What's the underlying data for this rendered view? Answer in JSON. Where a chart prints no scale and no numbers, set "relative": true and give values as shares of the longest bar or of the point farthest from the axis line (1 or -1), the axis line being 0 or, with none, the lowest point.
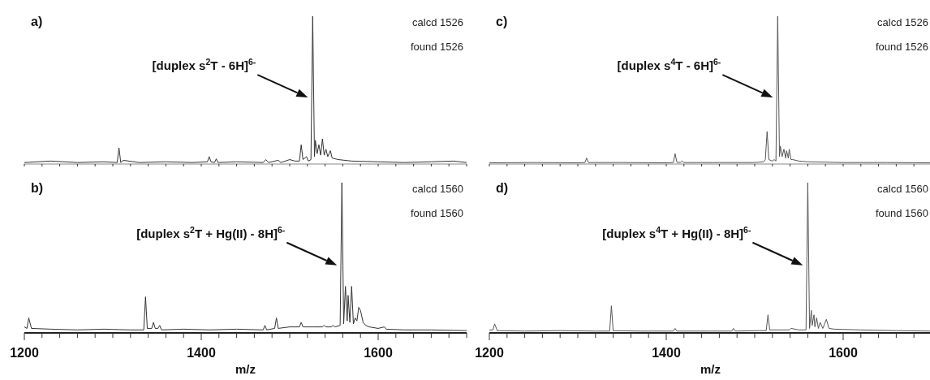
{
  "chart_data": [
    {
      "type": "line",
      "relative": true,
      "xlim": [
        1200,
        1700
      ],
      "tick_labels": false,
      "xticks": [
        {
          "value": 1200,
          "label": null
        },
        {
          "value": 1220,
          "label": null
        },
        {
          "value": 1240,
          "label": null
        },
        {
          "value": 1260,
          "label": null
        },
        {
          "value": 1280,
          "label": null
        },
        {
          "value": 1300,
          "label": null
        },
        {
          "value": 1320,
          "label": null
        },
        {
          "value": 1340,
          "label": null
        },
        {
          "value": 1360,
          "label": null
        },
        {
          "value": 1380,
          "label": null
        },
        {
          "value": 1400,
          "label": null
        },
        {
          "value": 1420,
          "label": null
        },
        {
          "value": 1440,
          "label": null
        },
        {
          "value": 1460,
          "label": null
        },
        {
          "value": 1480,
          "label": null
        },
        {
          "value": 1500,
          "label": null
        },
        {
          "value": 1520,
          "label": null
        },
        {
          "value": 1540,
          "label": null
        },
        {
          "value": 1560,
          "label": null
        },
        {
          "value": 1580,
          "label": null
        },
        {
          "value": 1600,
          "label": null
        },
        {
          "value": 1620,
          "label": null
        },
        {
          "value": 1640,
          "label": null
        },
        {
          "value": 1660,
          "label": null
        },
        {
          "value": 1680,
          "label": null
        },
        {
          "value": 1700,
          "label": null
        }
      ],
      "annotations": [
        "a)",
        "calcd 1526",
        "found 1526",
        "[duplex s$^{2}$T - 6H]$^{6-}$"
      ],
      "series": [
        {
          "color": "#333333",
          "x": [
            1200,
            1230,
            1260,
            1290,
            1305,
            1307,
            1309,
            1312,
            1330,
            1360,
            1390,
            1407,
            1409,
            1411,
            1415,
            1417,
            1419,
            1440,
            1470,
            1473,
            1476,
            1487,
            1490,
            1500,
            1506,
            1511,
            1513,
            1515,
            1519,
            1521,
            1524,
            1526,
            1528,
            1529,
            1531,
            1533,
            1535,
            1537,
            1539,
            1541,
            1543,
            1546,
            1548,
            1555,
            1570,
            1600,
            1630,
            1660,
            1685,
            1700
          ],
          "values": [
            0.01,
            0.02,
            0.01,
            0.015,
            0.01,
            0.11,
            0.01,
            0.025,
            0.01,
            0.015,
            0.01,
            0.015,
            0.05,
            0.015,
            0.01,
            0.035,
            0.01,
            0.015,
            0.01,
            0.03,
            0.01,
            0.025,
            0.01,
            0.03,
            0.02,
            0.02,
            0.13,
            0.03,
            0.05,
            0.02,
            0.03,
            1.0,
            0.05,
            0.16,
            0.07,
            0.13,
            0.06,
            0.17,
            0.06,
            0.1,
            0.05,
            0.09,
            0.04,
            0.03,
            0.02,
            0.015,
            0.01,
            0.015,
            0.02,
            0.01
          ]
        }
      ]
    },
    {
      "type": "line",
      "relative": true,
      "xlim": [
        1200,
        1700
      ],
      "tick_labels": false,
      "xticks": [
        {
          "value": 1200,
          "label": null
        },
        {
          "value": 1220,
          "label": null
        },
        {
          "value": 1240,
          "label": null
        },
        {
          "value": 1260,
          "label": null
        },
        {
          "value": 1280,
          "label": null
        },
        {
          "value": 1300,
          "label": null
        },
        {
          "value": 1320,
          "label": null
        },
        {
          "value": 1340,
          "label": null
        },
        {
          "value": 1360,
          "label": null
        },
        {
          "value": 1380,
          "label": null
        },
        {
          "value": 1400,
          "label": null
        },
        {
          "value": 1420,
          "label": null
        },
        {
          "value": 1440,
          "label": null
        },
        {
          "value": 1460,
          "label": null
        },
        {
          "value": 1480,
          "label": null
        },
        {
          "value": 1500,
          "label": null
        },
        {
          "value": 1520,
          "label": null
        },
        {
          "value": 1540,
          "label": null
        },
        {
          "value": 1560,
          "label": null
        },
        {
          "value": 1580,
          "label": null
        },
        {
          "value": 1600,
          "label": null
        },
        {
          "value": 1620,
          "label": null
        },
        {
          "value": 1640,
          "label": null
        },
        {
          "value": 1660,
          "label": null
        },
        {
          "value": 1680,
          "label": null
        },
        {
          "value": 1700,
          "label": null
        }
      ],
      "annotations": [
        "c)",
        "calcd 1526",
        "found 1526",
        "[duplex s$^{4}$T - 6H]$^{6-}$"
      ],
      "series": [
        {
          "color": "#555555",
          "x": [
            1200,
            1250,
            1300,
            1308,
            1310,
            1312,
            1350,
            1400,
            1408,
            1410,
            1412,
            1416,
            1418,
            1420,
            1460,
            1500,
            1510,
            1512,
            1514,
            1516,
            1520,
            1522,
            1524,
            1526,
            1528,
            1529,
            1531,
            1533,
            1535,
            1536,
            1538,
            1539,
            1541,
            1543,
            1550,
            1560,
            1600,
            1650,
            1700
          ],
          "values": [
            0.008,
            0.01,
            0.008,
            0.01,
            0.04,
            0.01,
            0.01,
            0.008,
            0.01,
            0.07,
            0.012,
            0.01,
            0.02,
            0.01,
            0.01,
            0.01,
            0.015,
            0.03,
            0.22,
            0.03,
            0.02,
            0.03,
            0.02,
            1.0,
            0.05,
            0.12,
            0.05,
            0.1,
            0.04,
            0.09,
            0.04,
            0.1,
            0.03,
            0.03,
            0.02,
            0.015,
            0.01,
            0.01,
            0.008
          ]
        }
      ]
    },
    {
      "type": "line",
      "relative": true,
      "xlim": [
        1200,
        1700
      ],
      "tick_labels": "x",
      "xlabel": "m/z",
      "xticks": [
        1200,
        {
          "value": 1220,
          "label": null
        },
        {
          "value": 1240,
          "label": null
        },
        {
          "value": 1260,
          "label": null
        },
        {
          "value": 1280,
          "label": null
        },
        {
          "value": 1300,
          "label": null
        },
        {
          "value": 1320,
          "label": null
        },
        {
          "value": 1340,
          "label": null
        },
        {
          "value": 1360,
          "label": null
        },
        {
          "value": 1380,
          "label": null
        },
        1400,
        {
          "value": 1420,
          "label": null
        },
        {
          "value": 1440,
          "label": null
        },
        {
          "value": 1460,
          "label": null
        },
        {
          "value": 1480,
          "label": null
        },
        {
          "value": 1500,
          "label": null
        },
        {
          "value": 1520,
          "label": null
        },
        {
          "value": 1540,
          "label": null
        },
        {
          "value": 1560,
          "label": null
        },
        {
          "value": 1580,
          "label": null
        },
        1600,
        {
          "value": 1620,
          "label": null
        },
        {
          "value": 1640,
          "label": null
        },
        {
          "value": 1660,
          "label": null
        },
        {
          "value": 1680,
          "label": null
        },
        {
          "value": 1700,
          "label": null
        }
      ],
      "annotations": [
        "b)",
        "calcd 1560",
        "found 1560",
        "[duplex s$^{2}$T + Hg(II) - 8H]$^{6-}$"
      ],
      "series": [
        {
          "color": "#333333",
          "x": [
            1200,
            1203,
            1205,
            1208,
            1230,
            1260,
            1290,
            1320,
            1335,
            1337,
            1339,
            1344,
            1346,
            1348,
            1351,
            1353,
            1355,
            1380,
            1410,
            1440,
            1470,
            1472,
            1474,
            1483,
            1485,
            1487,
            1500,
            1511,
            1513,
            1515,
            1525,
            1537,
            1539,
            1541,
            1547,
            1549,
            1551,
            1557,
            1559,
            1561,
            1563,
            1565,
            1566,
            1568,
            1570,
            1572,
            1574,
            1576,
            1578,
            1580,
            1583,
            1586,
            1590,
            1600,
            1607,
            1609,
            1630,
            1660,
            1700
          ],
          "values": [
            0.04,
            0.03,
            0.1,
            0.03,
            0.025,
            0.02,
            0.025,
            0.02,
            0.02,
            0.24,
            0.03,
            0.03,
            0.07,
            0.03,
            0.03,
            0.05,
            0.02,
            0.025,
            0.02,
            0.025,
            0.02,
            0.05,
            0.02,
            0.03,
            0.1,
            0.03,
            0.04,
            0.04,
            0.07,
            0.04,
            0.04,
            0.04,
            0.05,
            0.04,
            0.04,
            0.05,
            0.04,
            0.05,
            1.0,
            0.06,
            0.31,
            0.08,
            0.25,
            0.07,
            0.31,
            0.06,
            0.1,
            0.08,
            0.17,
            0.15,
            0.07,
            0.05,
            0.04,
            0.03,
            0.04,
            0.025,
            0.02,
            0.02,
            0.015
          ]
        }
      ]
    },
    {
      "type": "line",
      "relative": true,
      "xlim": [
        1200,
        1700
      ],
      "tick_labels": "x",
      "xlabel": "m/z",
      "xticks": [
        1200,
        {
          "value": 1220,
          "label": null
        },
        {
          "value": 1240,
          "label": null
        },
        {
          "value": 1260,
          "label": null
        },
        {
          "value": 1280,
          "label": null
        },
        {
          "value": 1300,
          "label": null
        },
        {
          "value": 1320,
          "label": null
        },
        {
          "value": 1340,
          "label": null
        },
        {
          "value": 1360,
          "label": null
        },
        {
          "value": 1380,
          "label": null
        },
        1400,
        {
          "value": 1420,
          "label": null
        },
        {
          "value": 1440,
          "label": null
        },
        {
          "value": 1460,
          "label": null
        },
        {
          "value": 1480,
          "label": null
        },
        {
          "value": 1500,
          "label": null
        },
        {
          "value": 1520,
          "label": null
        },
        {
          "value": 1540,
          "label": null
        },
        {
          "value": 1560,
          "label": null
        },
        {
          "value": 1580,
          "label": null
        },
        1600,
        {
          "value": 1620,
          "label": null
        },
        {
          "value": 1640,
          "label": null
        },
        {
          "value": 1660,
          "label": null
        },
        {
          "value": 1680,
          "label": null
        },
        {
          "value": 1700,
          "label": null
        }
      ],
      "annotations": [
        "d)",
        "calcd 1560",
        "found 1560",
        "[duplex s$^{4}$T + Hg(II) - 8H]$^{6-}$"
      ],
      "series": [
        {
          "color": "#555555",
          "x": [
            1200,
            1204,
            1206,
            1209,
            1240,
            1280,
            1320,
            1336,
            1338,
            1340,
            1370,
            1408,
            1410,
            1412,
            1450,
            1474,
            1476,
            1478,
            1505,
            1513,
            1515,
            1517,
            1530,
            1539,
            1541,
            1550,
            1558,
            1560,
            1562,
            1564,
            1565,
            1567,
            1568,
            1570,
            1572,
            1574,
            1577,
            1581,
            1584,
            1590,
            1620,
            1660,
            1700
          ],
          "values": [
            0.02,
            0.02,
            0.06,
            0.015,
            0.012,
            0.015,
            0.012,
            0.012,
            0.18,
            0.015,
            0.012,
            0.012,
            0.03,
            0.012,
            0.012,
            0.012,
            0.03,
            0.012,
            0.015,
            0.015,
            0.12,
            0.02,
            0.02,
            0.02,
            0.03,
            0.02,
            0.02,
            1.0,
            0.03,
            0.15,
            0.05,
            0.12,
            0.04,
            0.1,
            0.03,
            0.07,
            0.03,
            0.09,
            0.03,
            0.025,
            0.02,
            0.015,
            0.012
          ]
        }
      ]
    }
  ]
}
